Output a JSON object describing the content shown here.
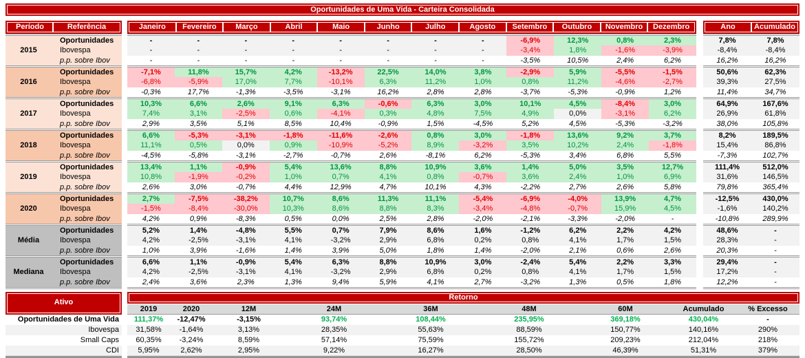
{
  "title": "Oportunidades de Uma Vida - Carteira Consolidada",
  "colors": {
    "header_red": "#C00000",
    "positive_fill": "#C6EFCE",
    "positive_text": "#009540",
    "negative_fill": "#FFC7CE",
    "negative_text": "#E00000",
    "neutral_fill": "#F2F2F2",
    "peach_light": "#FBE2D5",
    "peach_dark": "#F7C7AC",
    "stat_gray": "#BFBFBF",
    "bottom_header_gray": "#D9D9D9",
    "bottom_positive_text": "#00B050"
  },
  "main_table": {
    "period_header": "Período",
    "reference_header": "Referência",
    "year_header": "Ano",
    "accumulated_header": "Acumulado",
    "months": [
      "Janeiro",
      "Fevereiro",
      "Março",
      "Abril",
      "Maio",
      "Junho",
      "Julho",
      "Agosto",
      "Setembro",
      "Outubro",
      "Novembro",
      "Dezembro"
    ],
    "blocks": [
      {
        "period": "2015",
        "type": "year",
        "shade": "light",
        "rows": [
          {
            "label": "Oportunidades",
            "values": [
              "-",
              "-",
              "-",
              "-",
              "-",
              "-",
              "-",
              "-",
              "-6,9%",
              "12,3%",
              "0,8%",
              "2,3%"
            ],
            "ano": "7,8%",
            "acumulado": "7,8%"
          },
          {
            "label": "Ibovespa",
            "values": [
              "-",
              "-",
              "-",
              "-",
              "-",
              "-",
              "-",
              "-",
              "-3,4%",
              "1,8%",
              "-1,6%",
              "-3,9%"
            ],
            "ano": "-8,4%",
            "acumulado": "-8,4%"
          },
          {
            "label": "p.p. sobre Ibov",
            "values": [
              "-",
              "-",
              "-",
              "-",
              "-",
              "-",
              "-",
              "-",
              "-3,5%",
              "10,5%",
              "2,4%",
              "6,2%"
            ],
            "ano": "16,2%",
            "acumulado": "16,2%"
          }
        ]
      },
      {
        "period": "2016",
        "type": "year",
        "shade": "dark",
        "rows": [
          {
            "label": "Oportunidades",
            "values": [
              "-7,1%",
              "11,8%",
              "15,7%",
              "4,2%",
              "-13,2%",
              "22,5%",
              "14,0%",
              "3,8%",
              "-2,9%",
              "5,9%",
              "-5,5%",
              "-1,5%"
            ],
            "ano": "50,6%",
            "acumulado": "62,3%"
          },
          {
            "label": "Ibovespa",
            "values": [
              "-6,8%",
              "-5,9%",
              "17,0%",
              "7,7%",
              "-10,1%",
              "6,3%",
              "11,2%",
              "1,0%",
              "0,8%",
              "11,2%",
              "-4,6%",
              "-2,7%"
            ],
            "ano": "39,3%",
            "acumulado": "27,5%"
          },
          {
            "label": "p.p. sobre Ibov",
            "values": [
              "-0,3%",
              "17,7%",
              "-1,3%",
              "-3,5%",
              "-3,1%",
              "16,2%",
              "2,8%",
              "2,8%",
              "-3,7%",
              "-5,3%",
              "-0,9%",
              "1,2%"
            ],
            "ano": "11,4%",
            "acumulado": "34,7%"
          }
        ]
      },
      {
        "period": "2017",
        "type": "year",
        "shade": "light",
        "rows": [
          {
            "label": "Oportunidades",
            "values": [
              "10,3%",
              "6,6%",
              "2,6%",
              "9,1%",
              "6,3%",
              "-0,6%",
              "6,3%",
              "3,0%",
              "10,1%",
              "4,5%",
              "-8,4%",
              "3,0%"
            ],
            "ano": "64,9%",
            "acumulado": "167,6%"
          },
          {
            "label": "Ibovespa",
            "values": [
              "7,4%",
              "3,1%",
              "-2,5%",
              "0,6%",
              "-4,1%",
              "0,3%",
              "4,8%",
              "7,5%",
              "4,9%",
              "0,0%",
              "-3,1%",
              "6,2%"
            ],
            "ano": "26,9%",
            "acumulado": "61,8%"
          },
          {
            "label": "p.p. sobre Ibov",
            "values": [
              "2,9%",
              "3,5%",
              "5,1%",
              "8,5%",
              "10,4%",
              "-0,9%",
              "1,5%",
              "-4,5%",
              "5,2%",
              "4,5%",
              "-5,3%",
              "-3,2%"
            ],
            "ano": "38,0%",
            "acumulado": "105,8%"
          }
        ]
      },
      {
        "period": "2018",
        "type": "year",
        "shade": "dark",
        "rows": [
          {
            "label": "Oportunidades",
            "values": [
              "6,6%",
              "-5,3%",
              "-3,1%",
              "-1,8%",
              "-11,6%",
              "-2,6%",
              "0,8%",
              "3,0%",
              "-1,8%",
              "13,6%",
              "9,2%",
              "3,7%"
            ],
            "ano": "8,2%",
            "acumulado": "189,5%"
          },
          {
            "label": "Ibovespa",
            "values": [
              "11,1%",
              "0,5%",
              "0,0%",
              "0,9%",
              "-10,9%",
              "-5,2%",
              "8,9%",
              "-3,2%",
              "3,5%",
              "10,2%",
              "2,4%",
              "-1,8%"
            ],
            "ano": "15,4%",
            "acumulado": "86,8%"
          },
          {
            "label": "p.p. sobre Ibov",
            "values": [
              "-4,5%",
              "-5,8%",
              "-3,1%",
              "-2,7%",
              "-0,7%",
              "2,6%",
              "-8,1%",
              "6,2%",
              "-5,3%",
              "3,4%",
              "6,8%",
              "5,5%"
            ],
            "ano": "-7,3%",
            "acumulado": "102,7%"
          }
        ]
      },
      {
        "period": "2019",
        "type": "year",
        "shade": "light",
        "rows": [
          {
            "label": "Oportunidades",
            "values": [
              "13,4%",
              "1,1%",
              "-0,9%",
              "5,4%",
              "13,6%",
              "8,8%",
              "10,9%",
              "3,6%",
              "1,4%",
              "5,0%",
              "3,5%",
              "12,7%"
            ],
            "ano": "111,4%",
            "acumulado": "512,0%"
          },
          {
            "label": "Ibovespa",
            "values": [
              "10,8%",
              "-1,9%",
              "-0,2%",
              "1,0%",
              "0,7%",
              "4,1%",
              "0,8%",
              "-0,7%",
              "3,6%",
              "2,4%",
              "1,0%",
              "6,9%"
            ],
            "ano": "31,6%",
            "acumulado": "146,5%"
          },
          {
            "label": "p.p. sobre Ibov",
            "values": [
              "2,6%",
              "3,0%",
              "-0,7%",
              "4,4%",
              "12,9%",
              "4,7%",
              "10,1%",
              "4,3%",
              "-2,2%",
              "2,7%",
              "2,6%",
              "5,8%"
            ],
            "ano": "79,8%",
            "acumulado": "365,4%"
          }
        ]
      },
      {
        "period": "2020",
        "type": "year",
        "shade": "dark",
        "rows": [
          {
            "label": "Oportunidades",
            "values": [
              "2,7%",
              "-7,5%",
              "-38,2%",
              "10,7%",
              "8,6%",
              "11,3%",
              "11,1%",
              "-5,4%",
              "-6,9%",
              "-4,0%",
              "13,9%",
              "4,7%"
            ],
            "ano": "-12,5%",
            "acumulado": "430,0%"
          },
          {
            "label": "Ibovespa",
            "values": [
              "-1,5%",
              "-8,4%",
              "-30,0%",
              "10,3%",
              "8,6%",
              "8,8%",
              "8,3%",
              "-3,4%",
              "-4,8%",
              "-0,7%",
              "15,9%",
              "4,5%"
            ],
            "ano": "-1,6%",
            "acumulado": "140,2%"
          },
          {
            "label": "p.p. sobre Ibov",
            "values": [
              "4,2%",
              "0,9%",
              "-8,3%",
              "0,5%",
              "0,0%",
              "2,5%",
              "2,8%",
              "-2,0%",
              "-2,1%",
              "-3,3%",
              "-2,0%",
              "-"
            ],
            "ano": "-10,8%",
            "acumulado": "289,9%"
          }
        ]
      },
      {
        "period": "Média",
        "type": "stat",
        "shade": "gray",
        "rows": [
          {
            "label": "Oportunidades",
            "values": [
              "5,2%",
              "1,4%",
              "-4,8%",
              "5,5%",
              "0,7%",
              "7,9%",
              "8,6%",
              "1,6%",
              "-1,2%",
              "6,2%",
              "2,2%",
              "4,2%"
            ],
            "ano": "48,6%",
            "acumulado": "-"
          },
          {
            "label": "Ibovespa",
            "values": [
              "4,2%",
              "-2,5%",
              "-3,1%",
              "4,1%",
              "-3,2%",
              "2,9%",
              "6,8%",
              "0,2%",
              "0,8%",
              "4,1%",
              "1,7%",
              "1,5%"
            ],
            "ano": "28,3%",
            "acumulado": "-"
          },
          {
            "label": "p.p. sobre Ibov",
            "values": [
              "1,0%",
              "3,9%",
              "-1,6%",
              "1,4%",
              "3,9%",
              "5,0%",
              "1,8%",
              "1,4%",
              "-2,0%",
              "2,1%",
              "0,6%",
              "2,6%"
            ],
            "ano": "20,3%",
            "acumulado": "-"
          }
        ]
      },
      {
        "period": "Mediana",
        "type": "stat",
        "shade": "gray",
        "rows": [
          {
            "label": "Oportunidades",
            "values": [
              "6,6%",
              "1,1%",
              "-0,9%",
              "5,4%",
              "6,3%",
              "8,8%",
              "10,9%",
              "3,0%",
              "-2,4%",
              "5,4%",
              "2,2%",
              "3,3%"
            ],
            "ano": "29,4%",
            "acumulado": "-"
          },
          {
            "label": "Ibovespa",
            "values": [
              "4,2%",
              "-2,5%",
              "-3,1%",
              "4,1%",
              "-3,2%",
              "2,9%",
              "6,8%",
              "0,2%",
              "0,8%",
              "4,1%",
              "1,7%",
              "1,5%"
            ],
            "ano": "17,2%",
            "acumulado": "-"
          },
          {
            "label": "p.p. sobre Ibov",
            "values": [
              "2,4%",
              "3,6%",
              "2,3%",
              "1,3%",
              "9,4%",
              "5,9%",
              "4,1%",
              "2,7%",
              "-3,2%",
              "1,3%",
              "0,5%",
              "1,8%"
            ],
            "ano": "12,2%",
            "acumulado": "-"
          }
        ]
      }
    ]
  },
  "bottom_table": {
    "asset_header": "Ativo",
    "return_header": "Retorno",
    "columns": [
      "2019",
      "2020",
      "12M",
      "24M",
      "36M",
      "48M",
      "60M",
      "Acumulado",
      "% Excesso"
    ],
    "rows": [
      {
        "label": "Oportunidades de Uma Vida",
        "highlight": true,
        "values": [
          "111,37%",
          "-12,47%",
          "-3,15%",
          "93,74%",
          "108,44%",
          "235,95%",
          "369,18%",
          "430,04%",
          "-"
        ]
      },
      {
        "label": "Ibovespa",
        "highlight": false,
        "values": [
          "31,58%",
          "-1,64%",
          "3,13%",
          "28,35%",
          "55,63%",
          "88,59%",
          "150,77%",
          "140,16%",
          "290%"
        ]
      },
      {
        "label": "Small Caps",
        "highlight": false,
        "values": [
          "60,35%",
          "-3,24%",
          "8,59%",
          "57,14%",
          "75,59%",
          "155,72%",
          "209,23%",
          "212,04%",
          "218%"
        ]
      },
      {
        "label": "CDI",
        "highlight": false,
        "values": [
          "5,95%",
          "2,62%",
          "2,95%",
          "9,22%",
          "16,27%",
          "28,50%",
          "46,39%",
          "51,31%",
          "379%"
        ]
      }
    ]
  }
}
